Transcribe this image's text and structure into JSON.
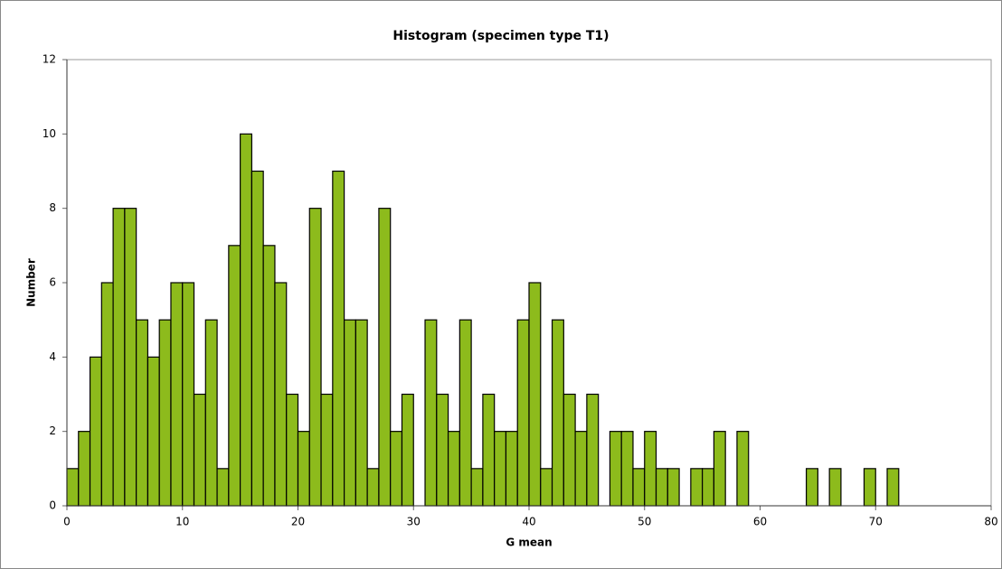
{
  "chart_data": {
    "type": "histogram",
    "title": "Histogram (specimen type T1)",
    "x_label": "G mean",
    "y_label": "Number",
    "bins": [
      0,
      1,
      2,
      3,
      4,
      5,
      6,
      7,
      8,
      9,
      10,
      11,
      12,
      13,
      14,
      15,
      16,
      17,
      18,
      19,
      20,
      21,
      22,
      23,
      24,
      25,
      26,
      27,
      28,
      29,
      30,
      31,
      32,
      33,
      34,
      35,
      36,
      37,
      38,
      39,
      40,
      41,
      42,
      43,
      44,
      45,
      46,
      47,
      48,
      49,
      50,
      51,
      52,
      53,
      54,
      55,
      56,
      57,
      58,
      59,
      60,
      61,
      62,
      63,
      64,
      65,
      66,
      67,
      68,
      69,
      70,
      71,
      72
    ],
    "values": [
      1,
      2,
      4,
      6,
      8,
      8,
      5,
      4,
      5,
      6,
      6,
      3,
      5,
      1,
      7,
      10,
      9,
      7,
      6,
      3,
      2,
      8,
      3,
      9,
      5,
      5,
      1,
      8,
      2,
      3,
      0,
      5,
      3,
      2,
      5,
      1,
      3,
      2,
      2,
      5,
      6,
      1,
      5,
      3,
      2,
      3,
      0,
      2,
      2,
      1,
      2,
      1,
      1,
      0,
      1,
      1,
      2,
      0,
      2,
      0,
      0,
      0,
      0,
      0,
      1,
      0,
      1,
      0,
      0,
      1,
      0,
      1
    ],
    "color": "#8dbb1c",
    "xlim": [
      0,
      80
    ],
    "xticks": [
      0,
      10,
      20,
      30,
      40,
      50,
      60,
      70,
      80
    ],
    "ylim": [
      0,
      12
    ],
    "yticks": [
      0,
      2,
      4,
      6,
      8,
      10,
      12
    ],
    "grid": false
  }
}
